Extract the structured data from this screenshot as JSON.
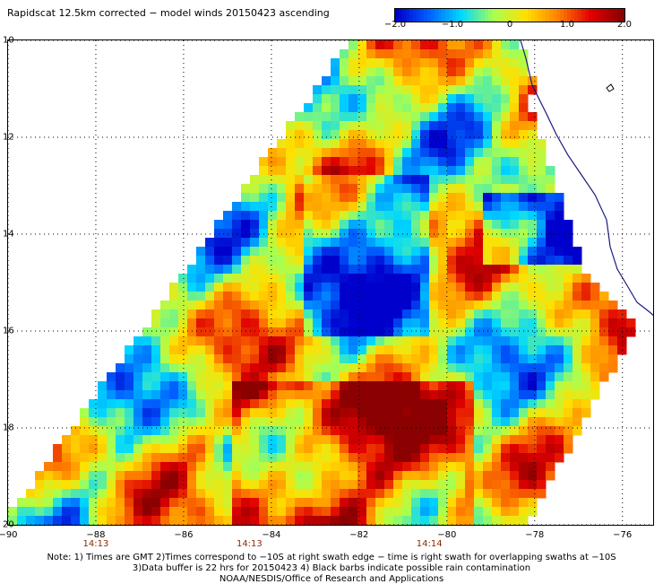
{
  "title": "Rapidscat 12.5km corrected − model winds 20150423 ascending",
  "colorbar": {
    "labels": [
      "−2.0",
      "−1.0",
      "0",
      "1.0",
      "2.0"
    ],
    "range": [
      -2.0,
      2.0
    ],
    "colors": [
      "#0000cd",
      "#0060ff",
      "#00d8ff",
      "#a8ff50",
      "#ffe000",
      "#ff8000",
      "#e00000",
      "#8b0000"
    ]
  },
  "map": {
    "lat_labels": [
      "10",
      "12",
      "14",
      "16",
      "18",
      "20"
    ],
    "lon_labels": [
      "−90",
      "−88",
      "−86",
      "−84",
      "−82",
      "−80",
      "−78",
      "−76"
    ],
    "lat_range": [
      -10,
      -20
    ],
    "lon_range": [
      -90,
      -75.3
    ],
    "times": [
      {
        "label": "14:13",
        "lon": -88.0
      },
      {
        "label": "14:13",
        "lon": -84.5
      },
      {
        "label": "14:14",
        "lon": -80.4
      }
    ],
    "grid": true
  },
  "notes": [
    "Note: 1) Times are GMT 2)Times correspond to −10S at right swath edge − time is right swath for overlapping swaths at −10S",
    "3)Data buffer is 22 hrs for 20150423 4) Black barbs indicate possible rain contamination",
    "NOAA/NESDIS/Office of Research and Applications"
  ]
}
